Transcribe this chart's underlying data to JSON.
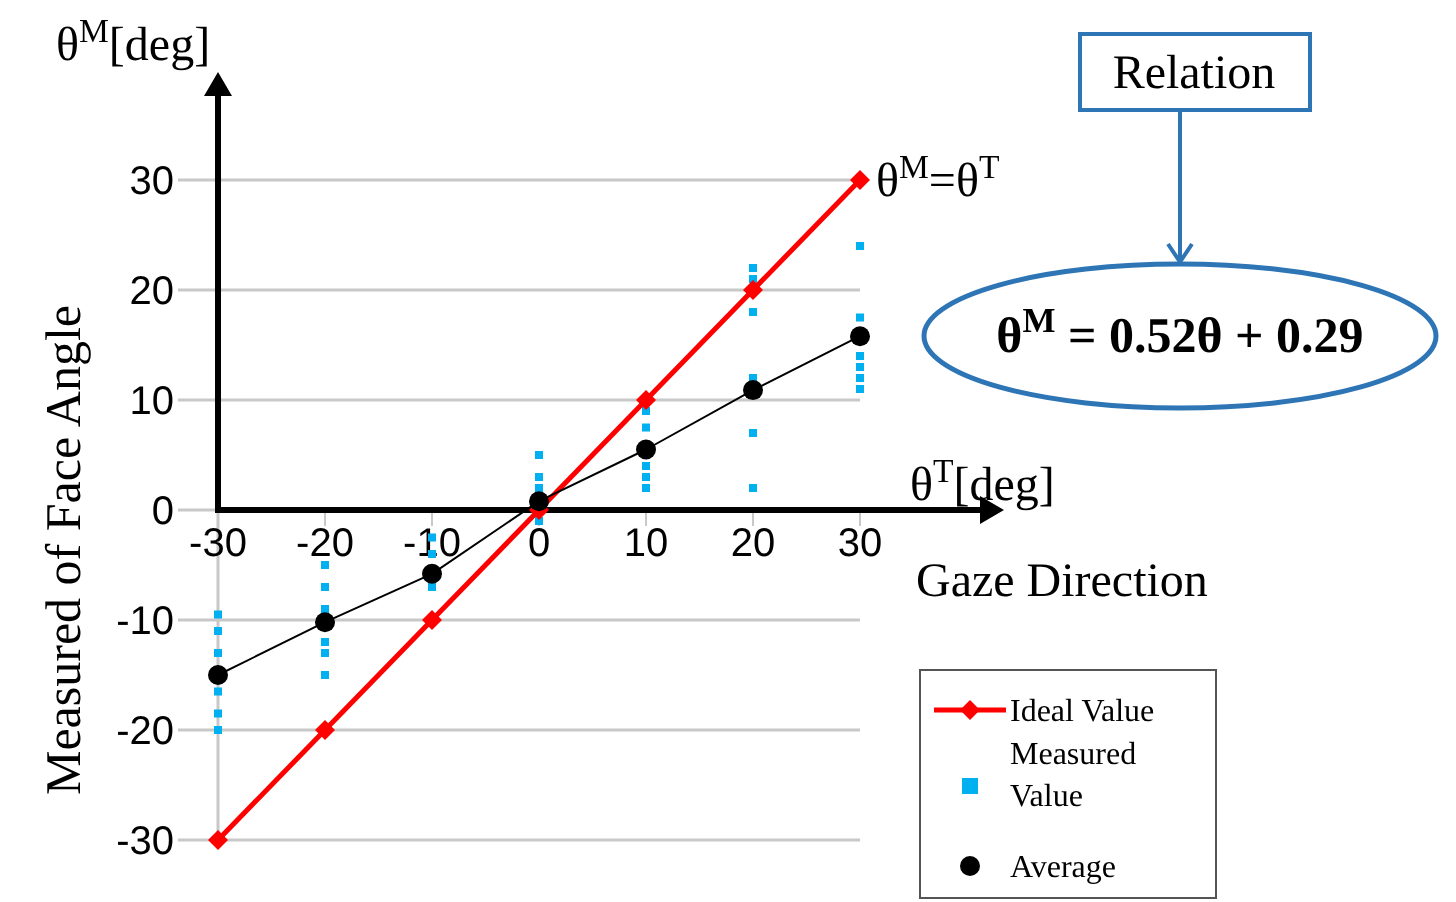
{
  "chart_data": {
    "type": "line",
    "ylabel": "Measured of Face Angle",
    "xlabel": "Gaze Direction",
    "xlim": [
      -30,
      30
    ],
    "ylim": [
      -30,
      30
    ],
    "xticks": [
      -30,
      -20,
      -10,
      0,
      10,
      20,
      30
    ],
    "yticks": [
      -30,
      -20,
      -10,
      0,
      10,
      20,
      30
    ],
    "grid": "y",
    "legend": "bottom right",
    "series": [
      {
        "name": "Ideal Value",
        "type": "line",
        "color": "#ff0000",
        "marker": "diamond",
        "x": [
          -30,
          -20,
          -10,
          0,
          10,
          20,
          30
        ],
        "values": [
          -30,
          -20,
          -10,
          0,
          10,
          20,
          30
        ]
      },
      {
        "name": "Measured Value",
        "type": "scatter",
        "color": "#00b0f0",
        "marker": "square",
        "x": [
          -30,
          -30,
          -30,
          -30,
          -30,
          -30,
          -20,
          -20,
          -20,
          -20,
          -20,
          -20,
          -10,
          -10,
          -10,
          0,
          0,
          0,
          0,
          10,
          10,
          10,
          10,
          10,
          20,
          20,
          20,
          20,
          20,
          20,
          30,
          30,
          30,
          30,
          30,
          30
        ],
        "values": [
          -9.5,
          -11,
          -13,
          -16.5,
          -18.5,
          -20,
          -5,
          -7,
          -9,
          -12,
          -13,
          -15,
          -2.5,
          -4,
          -7,
          5,
          3,
          2,
          -1,
          9,
          7.5,
          4,
          3,
          2,
          22,
          21,
          18,
          12,
          7,
          2,
          24,
          17.5,
          14,
          13,
          12,
          11
        ]
      },
      {
        "name": "Average",
        "type": "line",
        "color": "#000000",
        "marker": "circle",
        "x": [
          -30,
          -20,
          -10,
          0,
          10,
          20,
          30
        ],
        "values": [
          -15,
          -10.2,
          -5.8,
          0.8,
          5.5,
          10.9,
          15.8
        ]
      }
    ],
    "annotations": [
      "θ$^{M}$[deg]",
      "θ$^{T}$[deg]",
      {
        "text": "θ$^{M}$=θ$^{T}$",
        "x": 30,
        "y": 30
      },
      "Relation",
      "θ$^{M}$ = 0.52θ + 0.29"
    ]
  }
}
